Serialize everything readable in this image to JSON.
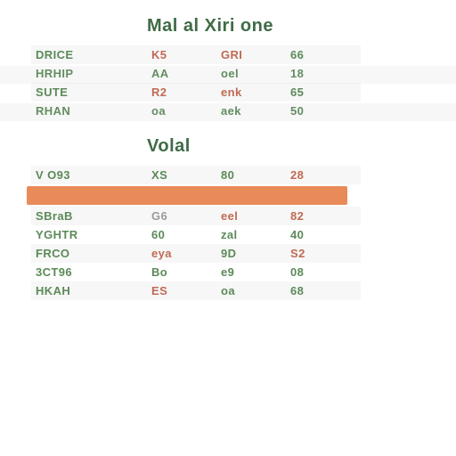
{
  "colors": {
    "title": "#3f6b46",
    "green": "#5b8a58",
    "red": "#c06a54",
    "gray": "#9a9a9a",
    "highlight_bg": "#e98b59",
    "background": "#ffffff"
  },
  "typography": {
    "title_fontsize": 20,
    "row_fontsize": 13,
    "font_family": "Arial"
  },
  "sections": [
    {
      "title": "Mal al  Xiri  one",
      "rows": [
        {
          "label": "DRICE",
          "c1": "K5",
          "c2": "GRI",
          "c3": "66",
          "label_color": "green",
          "c1_color": "red",
          "c2_color": "red",
          "c3_color": "green"
        },
        {
          "label": "HRHIP",
          "c1": "AA",
          "c2": "oel",
          "c3": "18",
          "label_color": "green",
          "c1_color": "green",
          "c2_color": "green",
          "c3_color": "green"
        },
        {
          "label": "SUTE",
          "c1": "R2",
          "c2": "enk",
          "c3": "65",
          "label_color": "green",
          "c1_color": "red",
          "c2_color": "red",
          "c3_color": "green"
        },
        {
          "label": "RHAN",
          "c1": "oa",
          "c2": "aek",
          "c3": "50",
          "label_color": "green",
          "c1_color": "green",
          "c2_color": "green",
          "c3_color": "green"
        }
      ]
    },
    {
      "title": "Volal",
      "has_header": true,
      "header": {
        "label": "V O93",
        "c1": "XS",
        "c2": "80",
        "c3": "28"
      },
      "highlight_after_header": true,
      "rows": [
        {
          "label": "SBraB",
          "c1": "G6",
          "c2": "eel",
          "c3": "82",
          "label_color": "green",
          "c1_color": "gray",
          "c2_color": "red",
          "c3_color": "red"
        },
        {
          "label": "YGHTR",
          "c1": "60",
          "c2": "zal",
          "c3": "40",
          "label_color": "green",
          "c1_color": "green",
          "c2_color": "green",
          "c3_color": "green"
        },
        {
          "label": "FRCO",
          "c1": "eya",
          "c2": "9D",
          "c3": "S2",
          "label_color": "green",
          "c1_color": "red",
          "c2_color": "green",
          "c3_color": "red"
        },
        {
          "label": "3CT96",
          "c1": "Bo",
          "c2": "e9",
          "c3": "08",
          "label_color": "green",
          "c1_color": "green",
          "c2_color": "green",
          "c3_color": "green"
        },
        {
          "label": "HKAH",
          "c1": "ES",
          "c2": "oa",
          "c3": "68",
          "label_color": "green",
          "c1_color": "red",
          "c2_color": "green",
          "c3_color": "green"
        }
      ]
    }
  ]
}
